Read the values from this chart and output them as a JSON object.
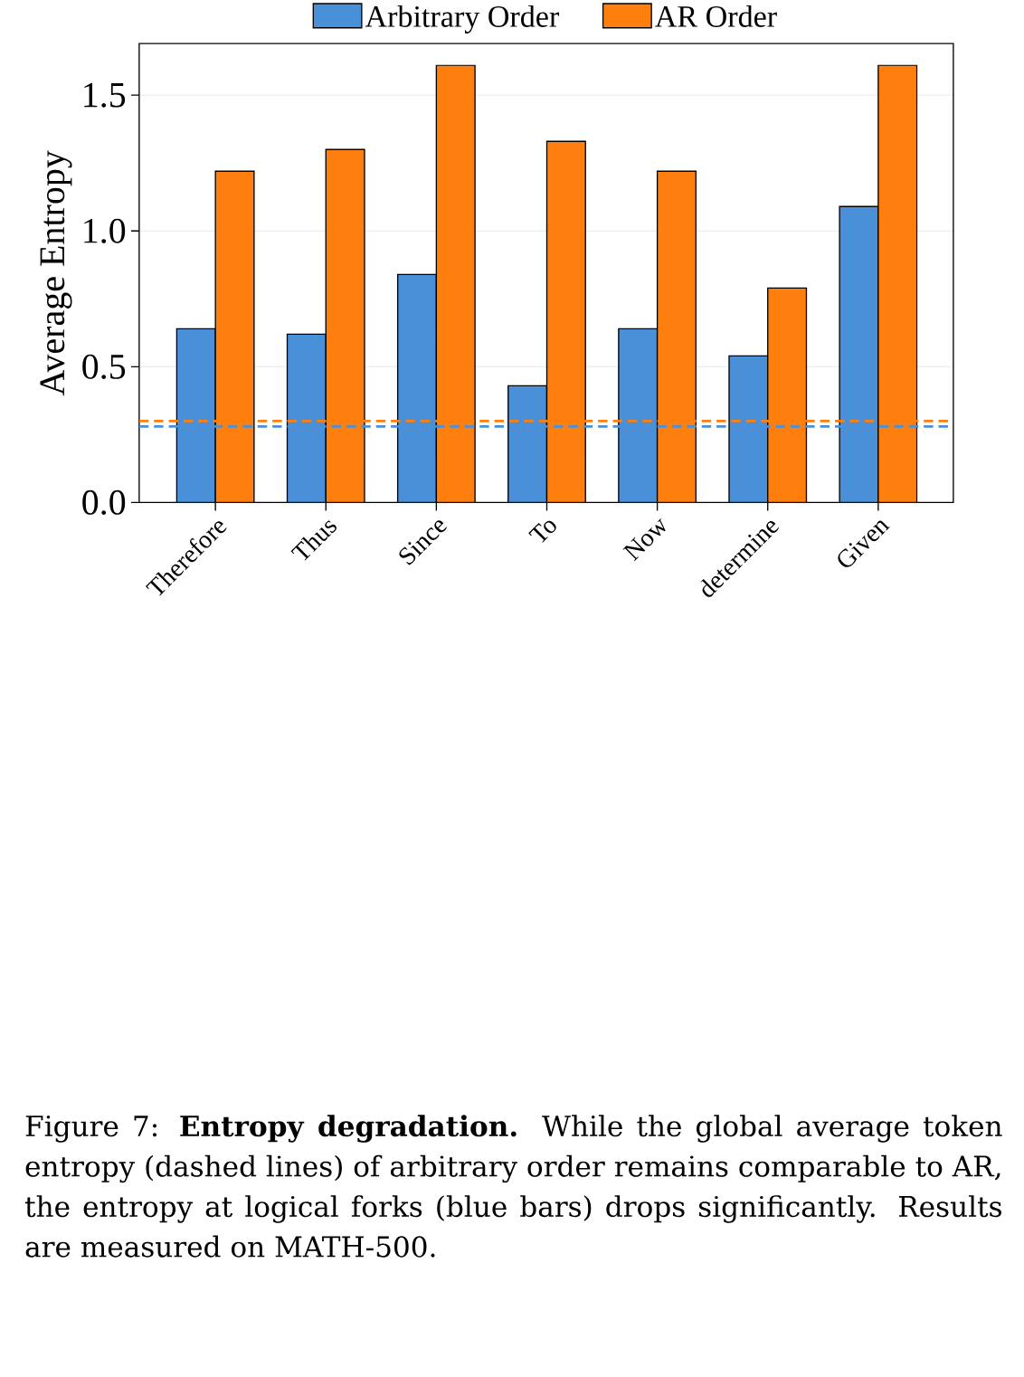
{
  "chart_data": {
    "type": "bar",
    "ylabel": "Average Entropy",
    "categories": [
      "Therefore",
      "Thus",
      "Since",
      "To",
      "Now",
      "determine",
      "Given"
    ],
    "series": [
      {
        "name": "Arbitrary Order",
        "color": "#4a90d9",
        "values": [
          0.64,
          0.62,
          0.84,
          0.43,
          0.64,
          0.54,
          1.09
        ]
      },
      {
        "name": "AR Order",
        "color": "#ff7f0e",
        "values": [
          1.22,
          1.3,
          1.61,
          1.33,
          1.22,
          0.79,
          1.61
        ]
      }
    ],
    "ylim": [
      0,
      1.69
    ],
    "yticks": [
      {
        "value": 0,
        "label": "0.0"
      },
      0.5,
      {
        "value": 1,
        "label": "1.0"
      },
      1.5
    ],
    "grid": "y",
    "legend": "top",
    "ref_lines": [
      {
        "axis": "y",
        "value": 0.3,
        "color": "#ff7f0e",
        "line_style": "dashed"
      },
      {
        "axis": "y",
        "value": 0.28,
        "color": "#4a90d9",
        "line_style": "dashed"
      }
    ],
    "annotations": [
      "Figure 7: **Entropy degradation.** While the global average token entropy (dashed lines) of arbitrary order remains comparable to AR, the entropy at logical forks (blue bars) drops significantly. Results are measured on MATH-500."
    ]
  }
}
